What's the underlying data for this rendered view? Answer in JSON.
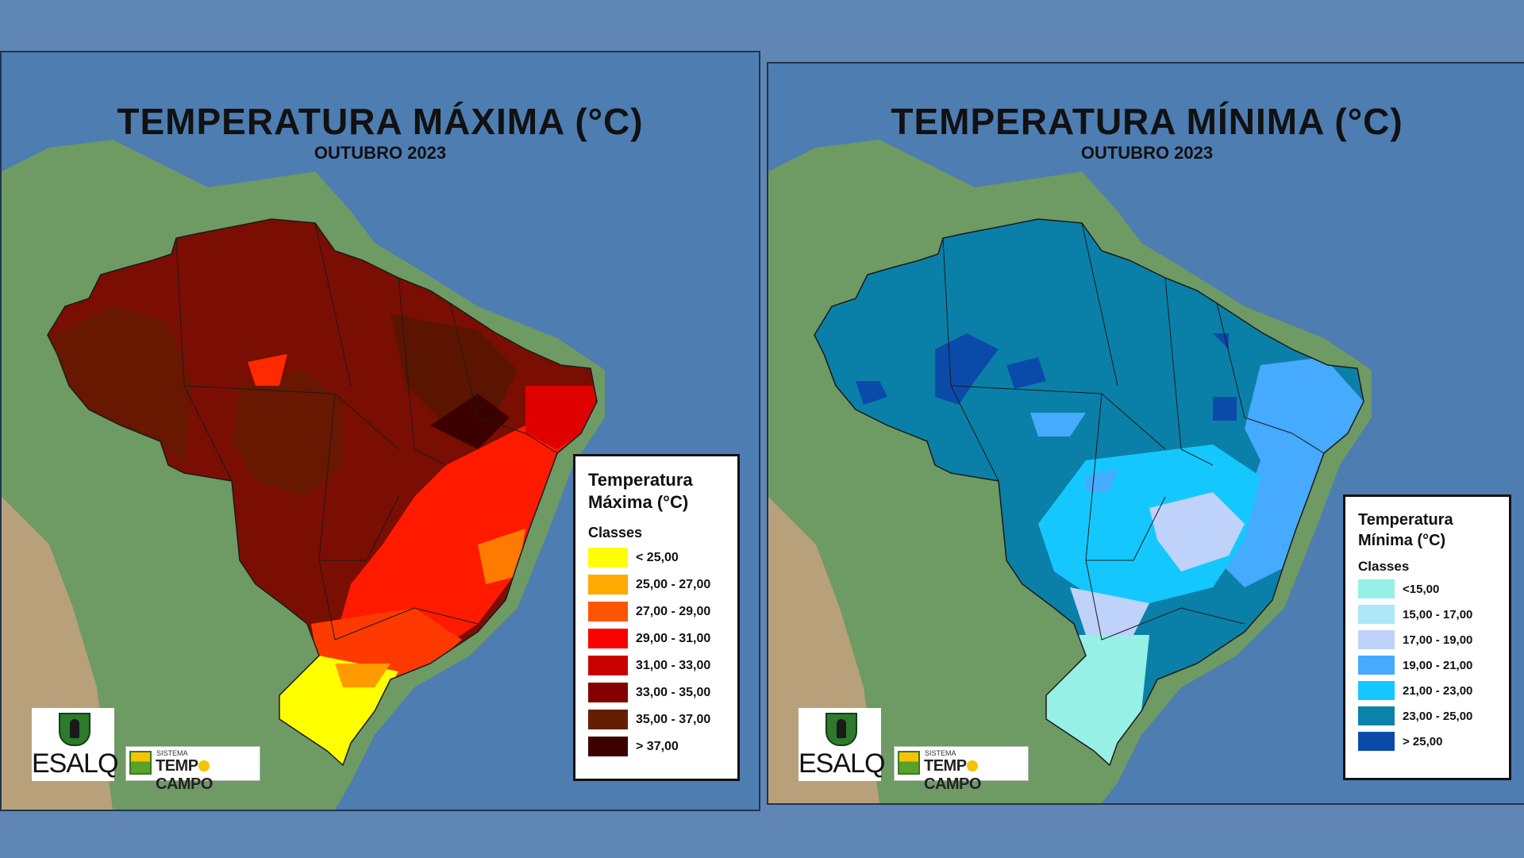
{
  "maps": [
    {
      "id": "max",
      "title": "TEMPERATURA MÁXIMA (°C)",
      "subtitle": "OUTUBRO 2023",
      "legend": {
        "title_line1": "Temperatura",
        "title_line2": "Máxima (°C)",
        "classes_label": "Classes",
        "items": [
          {
            "label": "< 25,00",
            "color": "#ffff00"
          },
          {
            "label": "25,00 - 27,00",
            "color": "#ffaa00"
          },
          {
            "label": "27,00 - 29,00",
            "color": "#ff5500"
          },
          {
            "label": "29,00 - 31,00",
            "color": "#ff0000"
          },
          {
            "label": "31,00 - 33,00",
            "color": "#c80000"
          },
          {
            "label": "33,00 - 35,00",
            "color": "#820000"
          },
          {
            "label": "35,00 - 37,00",
            "color": "#641e00"
          },
          {
            "label": "> 37,00",
            "color": "#3c0000"
          }
        ]
      }
    },
    {
      "id": "min",
      "title": "TEMPERATURA MÍNIMA (°C)",
      "subtitle": "OUTUBRO 2023",
      "legend": {
        "title_line1": "Temperatura",
        "title_line2": "Mínima (°C)",
        "classes_label": "Classes",
        "items": [
          {
            "label": "<15,00",
            "color": "#96f0e6"
          },
          {
            "label": "15,00 - 17,00",
            "color": "#aee6fa"
          },
          {
            "label": "17,00 - 19,00",
            "color": "#bed2fa"
          },
          {
            "label": "19,00 - 21,00",
            "color": "#46aaff"
          },
          {
            "label": "21,00 - 23,00",
            "color": "#14c8ff"
          },
          {
            "label": "23,00 - 25,00",
            "color": "#0a82aa"
          },
          {
            "label": "> 25,00",
            "color": "#0a4baa"
          }
        ]
      }
    }
  ],
  "logos": {
    "esalq": "ESALQ",
    "tempocampo_small": "SISTEMA",
    "tempocampo_pre": "TEMP",
    "tempocampo_post": "CAMPO"
  }
}
